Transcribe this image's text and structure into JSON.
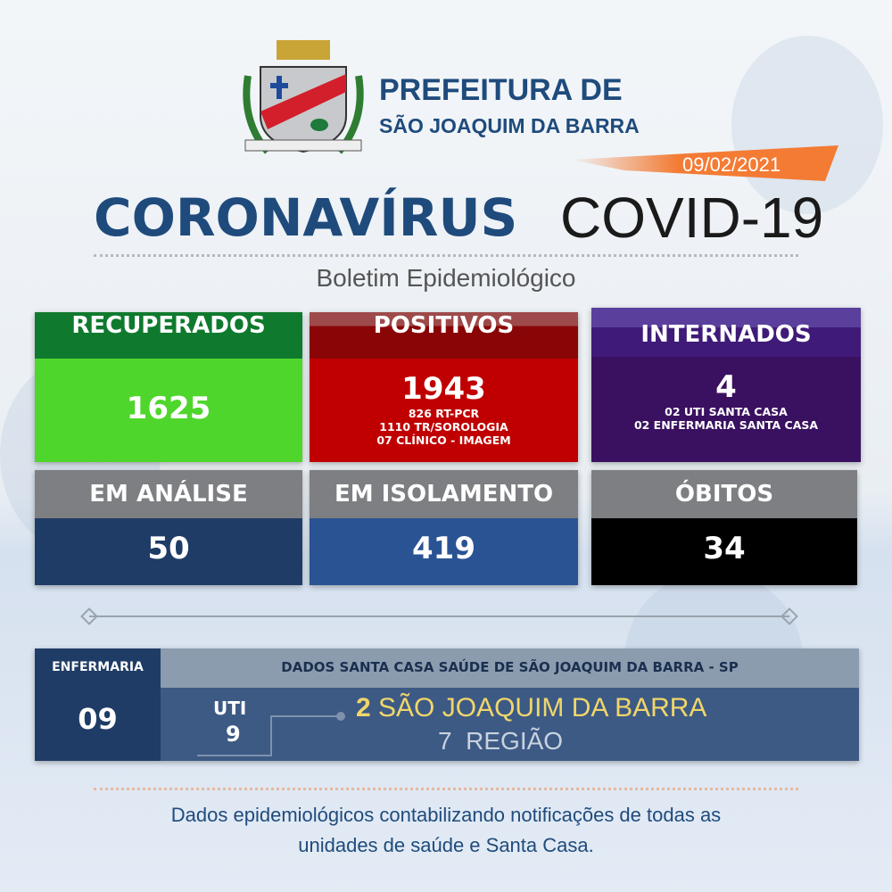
{
  "header": {
    "title_line1": "PREFEITURA DE",
    "title_line2": "SÃO JOAQUIM DA BARRA",
    "date": "09/02/2021"
  },
  "headline": {
    "main": "CORONAVÍRUS",
    "secondary": "COVID-19",
    "subtitle": "Boletim Epidemiológico"
  },
  "cards": [
    {
      "label": "RECUPERADOS",
      "value": "1625",
      "details": [],
      "header_color": "#0f7a2e",
      "body_color": "#4fd62c"
    },
    {
      "label": "POSITIVOS",
      "value": "1943",
      "details": [
        "826 RT-PCR",
        "1110 TR/SOROLOGIA",
        "07 CLÍNICO - IMAGEM"
      ],
      "header_color": "#8a0606",
      "body_color": "#c00000"
    },
    {
      "label": "INTERNADOS",
      "value": "4",
      "details": [
        "02 UTI SANTA CASA",
        "02 ENFERMARIA SANTA CASA"
      ],
      "header_color": "#4a2590",
      "body_color": "#3a1160"
    },
    {
      "label": "EM ANÁLISE",
      "value": "50",
      "header_color": "#7d7f83",
      "body_color": "#1f3c66"
    },
    {
      "label": "EM ISOLAMENTO",
      "value": "419",
      "header_color": "#7d7f83",
      "body_color": "#2a5394"
    },
    {
      "label": "ÓBITOS",
      "value": "34",
      "header_color": "#7d7f83",
      "body_color": "#000000"
    }
  ],
  "santa_casa": {
    "enfermaria_label": "ENFERMARIA",
    "enfermaria_value": "09",
    "title": "DADOS SANTA CASA SAÚDE DE SÃO JOAQUIM DA BARRA - SP",
    "uti_label": "UTI",
    "uti_value": "9",
    "local_count": "2",
    "local_name": "SÃO JOAQUIM DA BARRA",
    "region_count": "7",
    "region_name": "REGIÃO"
  },
  "footer": {
    "line1": "Dados epidemiológicos contabilizando notificações de todas as",
    "line2": "unidades de saúde e Santa Casa."
  }
}
